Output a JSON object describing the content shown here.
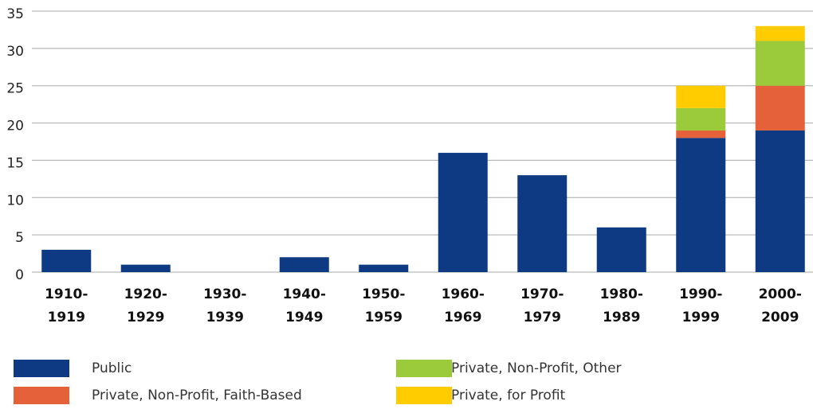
{
  "chart_data": {
    "type": "stacked_bar",
    "categories": [
      "1910-\n1919",
      "1920-\n1929",
      "1930-\n1939",
      "1940-\n1949",
      "1950-\n1959",
      "1960-\n1969",
      "1970-\n1979",
      "1980-\n1989",
      "1990-\n1999",
      "2000-\n2009"
    ],
    "series": [
      {
        "name": "Public",
        "color": "#0e3a84",
        "values": [
          3,
          1,
          0,
          2,
          1,
          16,
          13,
          6,
          18,
          19
        ]
      },
      {
        "name": "Private, Non-Profit, Faith-Based",
        "color": "#e4613a",
        "values": [
          0,
          0,
          0,
          0,
          0,
          0,
          0,
          0,
          1,
          6
        ]
      },
      {
        "name": "Private, Non-Profit, Other",
        "color": "#9bcb3b",
        "values": [
          0,
          0,
          0,
          0,
          0,
          0,
          0,
          0,
          3,
          6
        ]
      },
      {
        "name": "Private, for Profit",
        "color": "#ffcc00",
        "values": [
          0,
          0,
          0,
          0,
          0,
          0,
          0,
          0,
          3,
          2
        ]
      }
    ],
    "ylim": [
      0,
      35
    ],
    "yticks": [
      0,
      5,
      10,
      15,
      20,
      25,
      30,
      35
    ],
    "grid": true
  }
}
